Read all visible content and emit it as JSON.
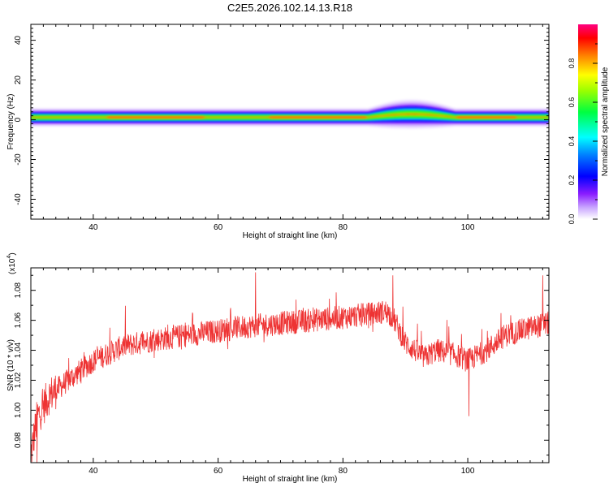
{
  "title": "C2E5.2026.102.14.13.R18",
  "chart_data": [
    {
      "type": "heatmap",
      "xlabel": "Height of straight line (km)",
      "ylabel": "Frequency (Hz)",
      "xlim": [
        30,
        113
      ],
      "ylim": [
        -50,
        48
      ],
      "xticks": [
        40,
        60,
        80,
        100
      ],
      "yticks": [
        -40,
        -20,
        0,
        20,
        40
      ],
      "colorbar": {
        "label": "Normalized spectral amplitude",
        "range": [
          0,
          1
        ],
        "ticks": [
          "0.0",
          "0.2",
          "0.4",
          "0.6",
          "0.8"
        ]
      },
      "band": {
        "center_hz": 1.2,
        "half_width_hz": 4,
        "broadened_segment": {
          "x_start": 84,
          "x_end": 98,
          "upper_hz": 4.5
        }
      }
    },
    {
      "type": "line",
      "xlabel": "Height of straight line (km)",
      "ylabel": "SNR (10 * v/v)",
      "multiplier": "(x10",
      "multiplier_exp": "4",
      "xlim": [
        30,
        113
      ],
      "ylim": [
        0.965,
        1.095
      ],
      "xticks": [
        40,
        60,
        80,
        100
      ],
      "yticks": [
        "0.98",
        "1.00",
        "1.02",
        "1.04",
        "1.06",
        "1.08"
      ],
      "series": [
        {
          "name": "SNR",
          "color": "#ee3333",
          "trend": [
            [
              30,
              0.97
            ],
            [
              31,
              0.995
            ],
            [
              33,
              1.01
            ],
            [
              36,
              1.02
            ],
            [
              40,
              1.033
            ],
            [
              45,
              1.043
            ],
            [
              50,
              1.047
            ],
            [
              55,
              1.05
            ],
            [
              60,
              1.053
            ],
            [
              65,
              1.056
            ],
            [
              70,
              1.058
            ],
            [
              75,
              1.06
            ],
            [
              80,
              1.062
            ],
            [
              84,
              1.064
            ],
            [
              87,
              1.066
            ],
            [
              88,
              1.062
            ],
            [
              90,
              1.045
            ],
            [
              93,
              1.035
            ],
            [
              95,
              1.04
            ],
            [
              98,
              1.037
            ],
            [
              100,
              1.033
            ],
            [
              103,
              1.04
            ],
            [
              106,
              1.05
            ],
            [
              110,
              1.055
            ],
            [
              113,
              1.058
            ]
          ],
          "noise_amplitude": 0.008,
          "spikes": [
            [
              66,
              1.092
            ],
            [
              88,
              1.09
            ],
            [
              112,
              1.09
            ],
            [
              100.2,
              0.996
            ],
            [
              31,
              0.965
            ]
          ]
        }
      ]
    }
  ]
}
